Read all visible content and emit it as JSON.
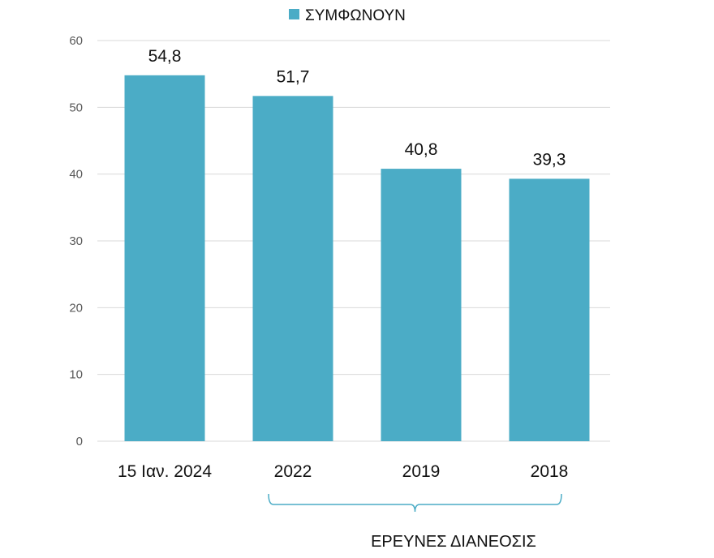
{
  "chart_data": {
    "type": "bar",
    "categories": [
      "15 Ιαν. 2024",
      "2022",
      "2019",
      "2018"
    ],
    "series": [
      {
        "name": "ΣΥΜΦΩΝΟΥΝ",
        "values": [
          54.8,
          51.7,
          40.8,
          39.3
        ],
        "labels": [
          "54,8",
          "51,7",
          "40,8",
          "39,3"
        ]
      }
    ],
    "yticks": [
      "0",
      "10",
      "20",
      "30",
      "40",
      "50",
      "60"
    ],
    "ylim": [
      0,
      60
    ],
    "grid": true,
    "legend": "top-center",
    "bar_color": "#4bacc6",
    "grid_color": "#d9d9d9",
    "bracket_color": "#4bacc6",
    "annotation": {
      "text": "ΕΡΕΥΝΕΣ ΔΙΑΝΕΟΣΙΣ",
      "covers_categories": [
        "2022",
        "2019",
        "2018"
      ]
    }
  }
}
